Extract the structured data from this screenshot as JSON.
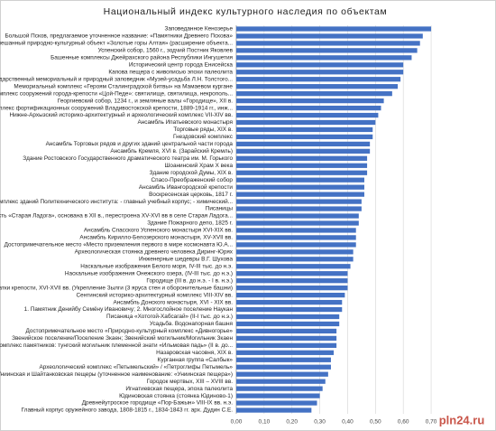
{
  "chart_data": {
    "type": "barh",
    "title": "Национальный индекс культурного наследия по объектам",
    "watermark": "pln24.ru",
    "color": "#4472c4",
    "grid": true,
    "xlim": [
      0,
      0.75
    ],
    "xticks": [
      {
        "value": 0,
        "label": "0,00"
      },
      {
        "value": 0.1,
        "label": "0,10"
      },
      {
        "value": 0.2,
        "label": "0,20"
      },
      {
        "value": 0.3,
        "label": "0,30"
      },
      {
        "value": 0.4,
        "label": "0,40"
      },
      {
        "value": 0.5,
        "label": "0,50"
      },
      {
        "value": 0.6,
        "label": "0,60"
      },
      {
        "value": 0.7,
        "label": "0,70"
      }
    ],
    "categories": [
      "Заповеданное Кенозерье",
      "Большой Псков, предлагаемое уточненное название: «Памятники Древнего Пскова»",
      "Смешанный природно-культурный объект «Золотые горы Алтая» (расширение объекта...",
      "Успенский собор, 1560 г., зодчий Постник Яковлев",
      "Башенные комплексы Джейрахского района Республики Ингушетия",
      "Исторический центр города Енисейска",
      "Капова пещера с живописью эпохи палеолита",
      "Государственный мемориальный и природный заповедник «Музей-усадьба Л.Н. Толстого...",
      "Мемориальный комплекс «Героям Сталинградской битвы» на Мамаевом кургане",
      "Комплекс сооружений города-крепости «Цой-Педе»: святилище, святилища, некрополь...",
      "Георгиевский собор, 1234 г., и земляные валы «Городище», XII в.",
      "Комплекс фортификационных сооружений Владивостокской крепости, 1889-1914 гг., инж...",
      "Нижне-Архызский историко-архитектурный и археологический комплекс VII-XIV вв.",
      "Ансамбль Ипатьевского монастыря",
      "Торговые ряды, XIX в.",
      "Гнездовский комплекс",
      "Ансамбль Торговых рядов и других зданий центральной части города",
      "Ансамбль Кремля, XVI в. (Зарайский Кремль)",
      "Здание Ростовского Государственного драматического театра им. М. Горького",
      "Шоанинский Храм X века",
      "Здание городской Думы, XIX в.",
      "Спасо-Преображенский собор",
      "Ансамбль Ивангородской крепости",
      "Воскресенская церковь, 1817 г.",
      "Комплекс зданий Политехнического института: - главный учебный корпус; - химический...",
      "Писаницы",
      "Крепость «Старая Ладога», основана в XII в., перестроена XV-XVI вв в селе Старая Ладога...",
      "Здание Пожарного депо, 1825 г.",
      "Ансамбль Спасского Успенского монастыря XVI-XIX вв.",
      "Ансамбль Кирилло-Белозерского монастыря, XV-XVII вв.",
      "Достопримечательное место «Место приземления первого в мире космонавта Ю.А...",
      "Археологическая стоянка древнего человека Диринг-Юрях",
      "Инженерные шедевры В.Г. Шухова",
      "Наскальные изображения Белого моря, IV-III тыс. до н.э.",
      "Наскальные изображения Онежского озера, (IV-III тыс. до н.э.)",
      "Городище (III в. до н.э. - I в. н.э.)",
      "Остатки крепости, XVI-XVII вв. (Укрепление Зылги (3 яруса стен и оборонительные башни)",
      "Сентинский историко-архитектурный комплекс VIII-XIV вв.",
      "Ансамбль Донского монастыря, XVI - XIX вв.",
      "1. Памятник Денийбу Семёну Ивановичу; 2. Многослойное поселение Наукан",
      "Писаница «Хотогой-Хабсагай» (II-I тыс. до н.э.)",
      "Усадьба. Водонапорная башня",
      "Достопримечательное место «Природно-культурный комплекс «Дивногорье»",
      "Звенийское поселение/Поселение Зкаен; Звенийский могильник/Могильник Зкаен",
      "Комплекс памятников: тунгский могильник племенной знати «Ильмовая падь» (II в. до...",
      "Назаровская часовня, XIX в.",
      "Курганная группа «Салбык»",
      "Археологический комплекс «Петымельский» / «Петроглифы Петымель»",
      "Униинская и Шайтанковская пещеры (уточненное наименование: «Униинская пещера»)",
      "Городок мертвых, XIII – XVIII вв.",
      "Игнатиевская пещера, эпоха палеолита",
      "Юдиновская стоянка (стоянка Юдиново-1)",
      "Древнейутроское городище «Пор-Бажын» VIII-IX вв. н.э.",
      "Главный корпус оружейного завода, 1808-1815 г., 1834-1843 гг. арх. Дудин С.Е."
    ],
    "values": [
      0.7,
      0.67,
      0.66,
      0.65,
      0.63,
      0.6,
      0.6,
      0.59,
      0.58,
      0.56,
      0.53,
      0.52,
      0.51,
      0.5,
      0.49,
      0.49,
      0.48,
      0.48,
      0.47,
      0.47,
      0.47,
      0.46,
      0.46,
      0.46,
      0.45,
      0.45,
      0.44,
      0.44,
      0.43,
      0.43,
      0.43,
      0.42,
      0.42,
      0.41,
      0.4,
      0.4,
      0.4,
      0.39,
      0.38,
      0.38,
      0.37,
      0.37,
      0.36,
      0.36,
      0.36,
      0.35,
      0.34,
      0.34,
      0.33,
      0.32,
      0.31,
      0.3,
      0.29,
      0.27
    ]
  }
}
